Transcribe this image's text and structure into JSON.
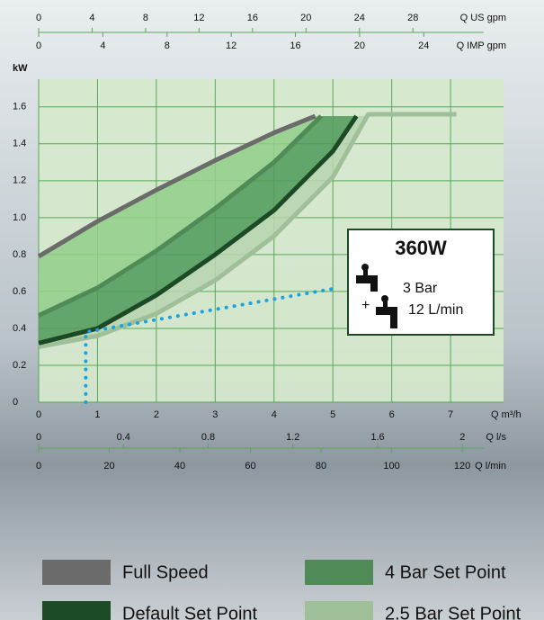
{
  "chart_data": {
    "type": "line",
    "y_label": "kW",
    "x_label": "Q m³/h",
    "xlim": [
      0,
      7.9
    ],
    "xticks": [
      0,
      1,
      2,
      3,
      4,
      5,
      6,
      7
    ],
    "ylim": [
      0,
      1.75
    ],
    "yticks": [
      0,
      0.2,
      0.4,
      0.6,
      0.8,
      {
        "value": 1,
        "label": "1.0"
      },
      1.2,
      1.4,
      1.6
    ],
    "grid": true,
    "top_axes": [
      {
        "label": "Q US gpm",
        "lim": [
          0,
          34.78
        ],
        "ticks": [
          0,
          4,
          8,
          12,
          16,
          20,
          24,
          28
        ]
      },
      {
        "label": "Q IMP gpm",
        "lim": [
          0,
          28.97
        ],
        "ticks": [
          0,
          4,
          8,
          12,
          16,
          20,
          24
        ]
      }
    ],
    "bottom_axes": [
      {
        "label": "Q l/s",
        "lim": [
          0,
          2.194
        ],
        "ticks": [
          0,
          0.4,
          0.8,
          1.2,
          1.6,
          2
        ]
      },
      {
        "label": "Q l/min",
        "lim": [
          0,
          131.7
        ],
        "ticks": [
          0,
          20,
          40,
          60,
          80,
          100,
          120
        ]
      }
    ],
    "series": [
      {
        "name": "Full Speed",
        "color": "#6b6b6b",
        "fill": "#92cf8a",
        "x": [
          0,
          1,
          2,
          3,
          4,
          4.7
        ],
        "values": [
          0.79,
          0.98,
          1.15,
          1.31,
          1.46,
          1.55
        ]
      },
      {
        "name": "4 Bar Set Point",
        "color": "#4f8a57",
        "fill": "#4f9a5a",
        "x": [
          0,
          1,
          2,
          3,
          4,
          4.8
        ],
        "values": [
          0.47,
          0.62,
          0.82,
          1.05,
          1.3,
          1.55
        ]
      },
      {
        "name": "Default Set Point",
        "color": "#1d4a26",
        "fill": "#b6d4ae",
        "x": [
          0,
          1,
          2,
          3,
          4,
          5,
          5.4
        ],
        "values": [
          0.32,
          0.4,
          0.58,
          0.8,
          1.04,
          1.36,
          1.55
        ]
      },
      {
        "name": "2.5 Bar Set Point",
        "color": "#9fbf98",
        "x": [
          0,
          1,
          2,
          3,
          4,
          5,
          5.6,
          7.1
        ],
        "values": [
          0.3,
          0.36,
          0.48,
          0.66,
          0.9,
          1.22,
          1.56,
          1.56
        ]
      }
    ],
    "operating_line": {
      "color": "#1aa3e0",
      "x": [
        0.8,
        0.8,
        5.1
      ],
      "values": [
        0,
        0.38,
        0.62
      ]
    },
    "annotation": {
      "title": "360W",
      "pressure": "3 Bar",
      "plus": "+",
      "flow": "12 L/min"
    }
  }
}
